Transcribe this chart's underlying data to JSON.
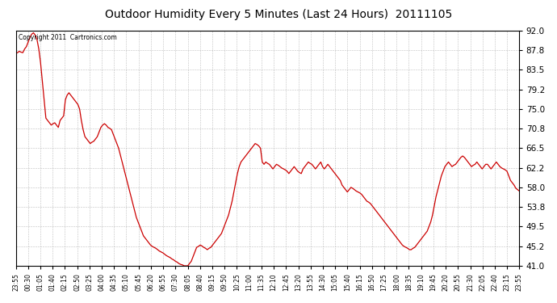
{
  "title": "Outdoor Humidity Every 5 Minutes (Last 24 Hours)  20111105",
  "copyright_text": "Copyright 2011  Cartronics.com",
  "line_color": "#cc0000",
  "bg_color": "#ffffff",
  "grid_color": "#b0b0b0",
  "ylim": [
    41.0,
    92.0
  ],
  "yticks": [
    41.0,
    45.2,
    49.5,
    53.8,
    58.0,
    62.2,
    66.5,
    70.8,
    75.0,
    79.2,
    83.5,
    87.8,
    92.0
  ],
  "xtick_labels": [
    "23:55",
    "00:30",
    "01:05",
    "01:40",
    "02:15",
    "02:50",
    "03:25",
    "04:00",
    "04:35",
    "05:10",
    "05:45",
    "06:20",
    "06:55",
    "07:30",
    "08:05",
    "08:40",
    "09:15",
    "09:50",
    "10:25",
    "11:00",
    "11:35",
    "12:10",
    "12:45",
    "13:20",
    "13:55",
    "14:30",
    "15:05",
    "15:40",
    "16:15",
    "16:50",
    "17:25",
    "18:00",
    "18:35",
    "19:10",
    "19:45",
    "20:20",
    "20:55",
    "21:30",
    "22:05",
    "22:40",
    "23:15",
    "23:55"
  ],
  "humidity_values": [
    87.0,
    87.2,
    87.5,
    87.3,
    87.2,
    88.0,
    88.5,
    89.5,
    90.5,
    91.2,
    91.5,
    91.0,
    90.0,
    88.0,
    85.0,
    81.0,
    77.0,
    73.0,
    72.5,
    72.0,
    71.5,
    71.8,
    72.0,
    71.5,
    71.0,
    72.5,
    73.0,
    73.5,
    77.0,
    78.0,
    78.5,
    78.0,
    77.5,
    77.0,
    76.5,
    76.0,
    75.0,
    72.5,
    70.5,
    69.0,
    68.5,
    68.0,
    67.5,
    67.8,
    68.0,
    68.5,
    69.0,
    70.0,
    71.0,
    71.5,
    71.8,
    71.5,
    71.0,
    70.8,
    70.5,
    69.5,
    68.5,
    67.5,
    66.5,
    65.0,
    63.5,
    62.0,
    60.5,
    59.0,
    57.5,
    56.0,
    54.5,
    53.0,
    51.5,
    50.5,
    49.5,
    48.5,
    47.5,
    47.0,
    46.5,
    46.0,
    45.5,
    45.2,
    45.0,
    44.8,
    44.5,
    44.2,
    44.0,
    43.8,
    43.5,
    43.2,
    43.0,
    42.8,
    42.5,
    42.3,
    42.0,
    41.8,
    41.5,
    41.3,
    41.2,
    41.0,
    41.0,
    41.0,
    41.5,
    42.0,
    43.0,
    44.0,
    45.0,
    45.2,
    45.5,
    45.3,
    45.0,
    44.8,
    44.5,
    44.8,
    45.0,
    45.5,
    46.0,
    46.5,
    47.0,
    47.5,
    48.0,
    49.0,
    50.0,
    51.0,
    52.0,
    53.5,
    55.0,
    57.0,
    59.0,
    61.0,
    62.5,
    63.5,
    64.0,
    64.5,
    65.0,
    65.5,
    66.0,
    66.5,
    67.0,
    67.5,
    67.3,
    67.0,
    66.5,
    63.5,
    63.0,
    63.5,
    63.2,
    63.0,
    62.5,
    62.0,
    62.5,
    63.0,
    62.8,
    62.5,
    62.2,
    62.0,
    61.8,
    61.5,
    61.0,
    61.5,
    62.0,
    62.5,
    62.0,
    61.5,
    61.2,
    61.0,
    62.0,
    62.5,
    63.0,
    63.5,
    63.2,
    63.0,
    62.5,
    62.0,
    62.5,
    63.0,
    63.5,
    62.5,
    62.0,
    62.5,
    63.0,
    62.5,
    62.0,
    61.5,
    61.0,
    60.5,
    60.0,
    59.5,
    58.5,
    58.0,
    57.5,
    57.0,
    57.5,
    58.0,
    57.8,
    57.5,
    57.2,
    57.0,
    56.8,
    56.5,
    56.0,
    55.5,
    55.0,
    54.8,
    54.5,
    54.0,
    53.5,
    53.0,
    52.5,
    52.0,
    51.5,
    51.0,
    50.5,
    50.0,
    49.5,
    49.0,
    48.5,
    48.0,
    47.5,
    47.0,
    46.5,
    46.0,
    45.5,
    45.2,
    45.0,
    44.8,
    44.5,
    44.5,
    44.8,
    45.0,
    45.5,
    46.0,
    46.5,
    47.0,
    47.5,
    48.0,
    48.5,
    49.5,
    50.5,
    52.0,
    54.0,
    56.0,
    57.5,
    59.0,
    60.5,
    61.5,
    62.5,
    63.0,
    63.5,
    63.0,
    62.5,
    62.8,
    63.0,
    63.5,
    64.0,
    64.5,
    64.8,
    64.5,
    64.0,
    63.5,
    63.0,
    62.5,
    62.8,
    63.0,
    63.5,
    63.0,
    62.5,
    62.0,
    62.5,
    63.0,
    63.0,
    62.5,
    62.0,
    62.5,
    63.0,
    63.5,
    63.0,
    62.5,
    62.2,
    62.0,
    61.8,
    61.5,
    60.5,
    59.5,
    59.0,
    58.5,
    57.8,
    57.5,
    57.2
  ]
}
